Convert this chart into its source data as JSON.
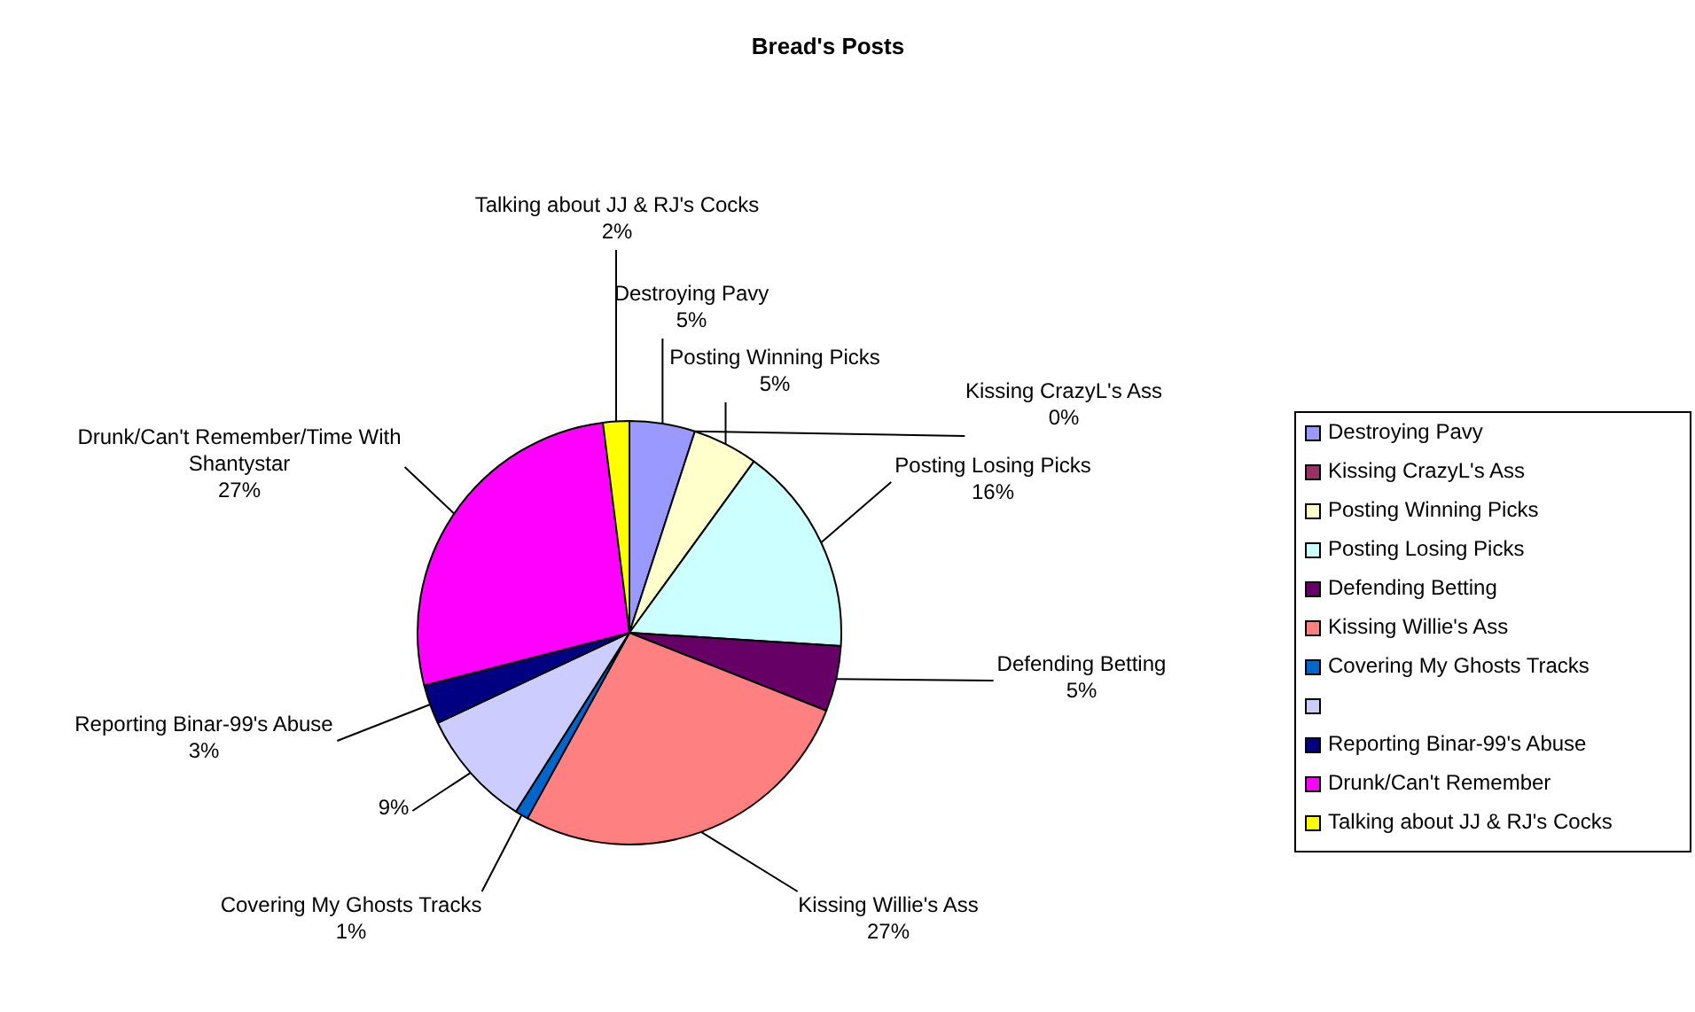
{
  "chart_data": {
    "type": "pie",
    "title": "Bread's Posts",
    "categories": [
      "Destroying Pavy",
      "Kissing CrazyL's Ass",
      "Posting Winning Picks",
      "Posting Losing Picks",
      "Defending Betting",
      "Kissing Willie's Ass",
      "Covering My Ghosts Tracks",
      null,
      "Reporting Binar-99's Abuse",
      "Drunk/Can't Remember",
      "Talking about JJ & RJ's Cocks"
    ],
    "values": [
      5,
      0,
      5,
      16,
      5,
      27,
      1,
      9,
      3,
      27,
      2
    ],
    "colors": [
      "#9999ff",
      "#993366",
      "#ffffcc",
      "#ccffff",
      "#660066",
      "#ff8080",
      "#0066cc",
      "#ccccff",
      "#000080",
      "#ff00ff",
      "#ffff00"
    ],
    "annotations": [
      {
        "text": "Drunk/Can't Remember/Time With Shantystar",
        "x": "Drunk/Can't Remember"
      }
    ],
    "legend": "right",
    "value_labels": [
      "5%",
      "0%",
      "5%",
      "16%",
      "5%",
      "27%",
      "1%",
      "9%",
      "3%",
      "27%",
      "2%"
    ]
  }
}
